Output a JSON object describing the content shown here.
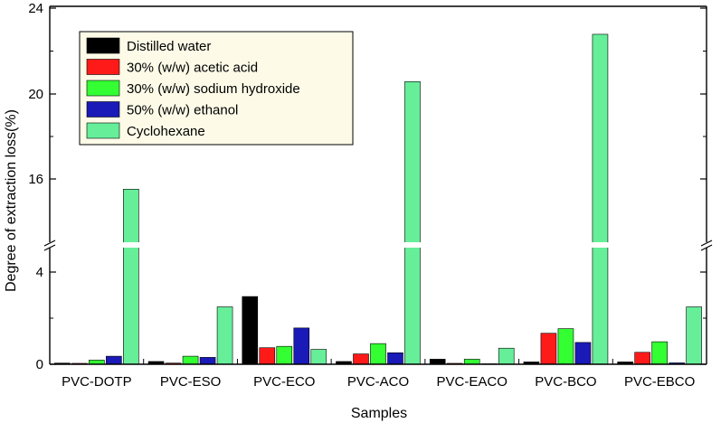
{
  "chart_data": {
    "type": "bar",
    "xlabel": "Samples",
    "ylabel": "Degree of extraction loss(%)",
    "categories": [
      "PVC-DOTP",
      "PVC-ESO",
      "PVC-ECO",
      "PVC-ACO",
      "PVC-EACO",
      "PVC-BCO",
      "PVC-EBCO"
    ],
    "y_axis_break": {
      "lower_range": [
        0,
        5
      ],
      "upper_range": [
        12,
        24
      ]
    },
    "yticks": [
      0,
      4,
      16,
      20,
      24
    ],
    "legend_position": "top-left",
    "series": [
      {
        "name": "Distilled water",
        "color": "#000000",
        "values": [
          0.05,
          0.12,
          2.95,
          0.12,
          0.22,
          0.1,
          0.1
        ]
      },
      {
        "name": "30% (w/w) acetic acid",
        "color": "#ff1a1a",
        "values": [
          0.04,
          0.05,
          0.72,
          0.45,
          0.04,
          1.35,
          0.52
        ]
      },
      {
        "name": "30% (w/w) sodium hydroxide",
        "color": "#33ff33",
        "values": [
          0.18,
          0.35,
          0.78,
          0.9,
          0.22,
          1.55,
          0.98
        ]
      },
      {
        "name": "50% (w/w) ethanol",
        "color": "#1a1ab8",
        "values": [
          0.35,
          0.3,
          1.58,
          0.5,
          0.02,
          0.95,
          0.06
        ]
      },
      {
        "name": "Cyclohexane",
        "color": "#66ee99",
        "values": [
          15.5,
          2.5,
          0.65,
          20.5,
          0.7,
          22.7,
          2.5
        ]
      }
    ]
  }
}
